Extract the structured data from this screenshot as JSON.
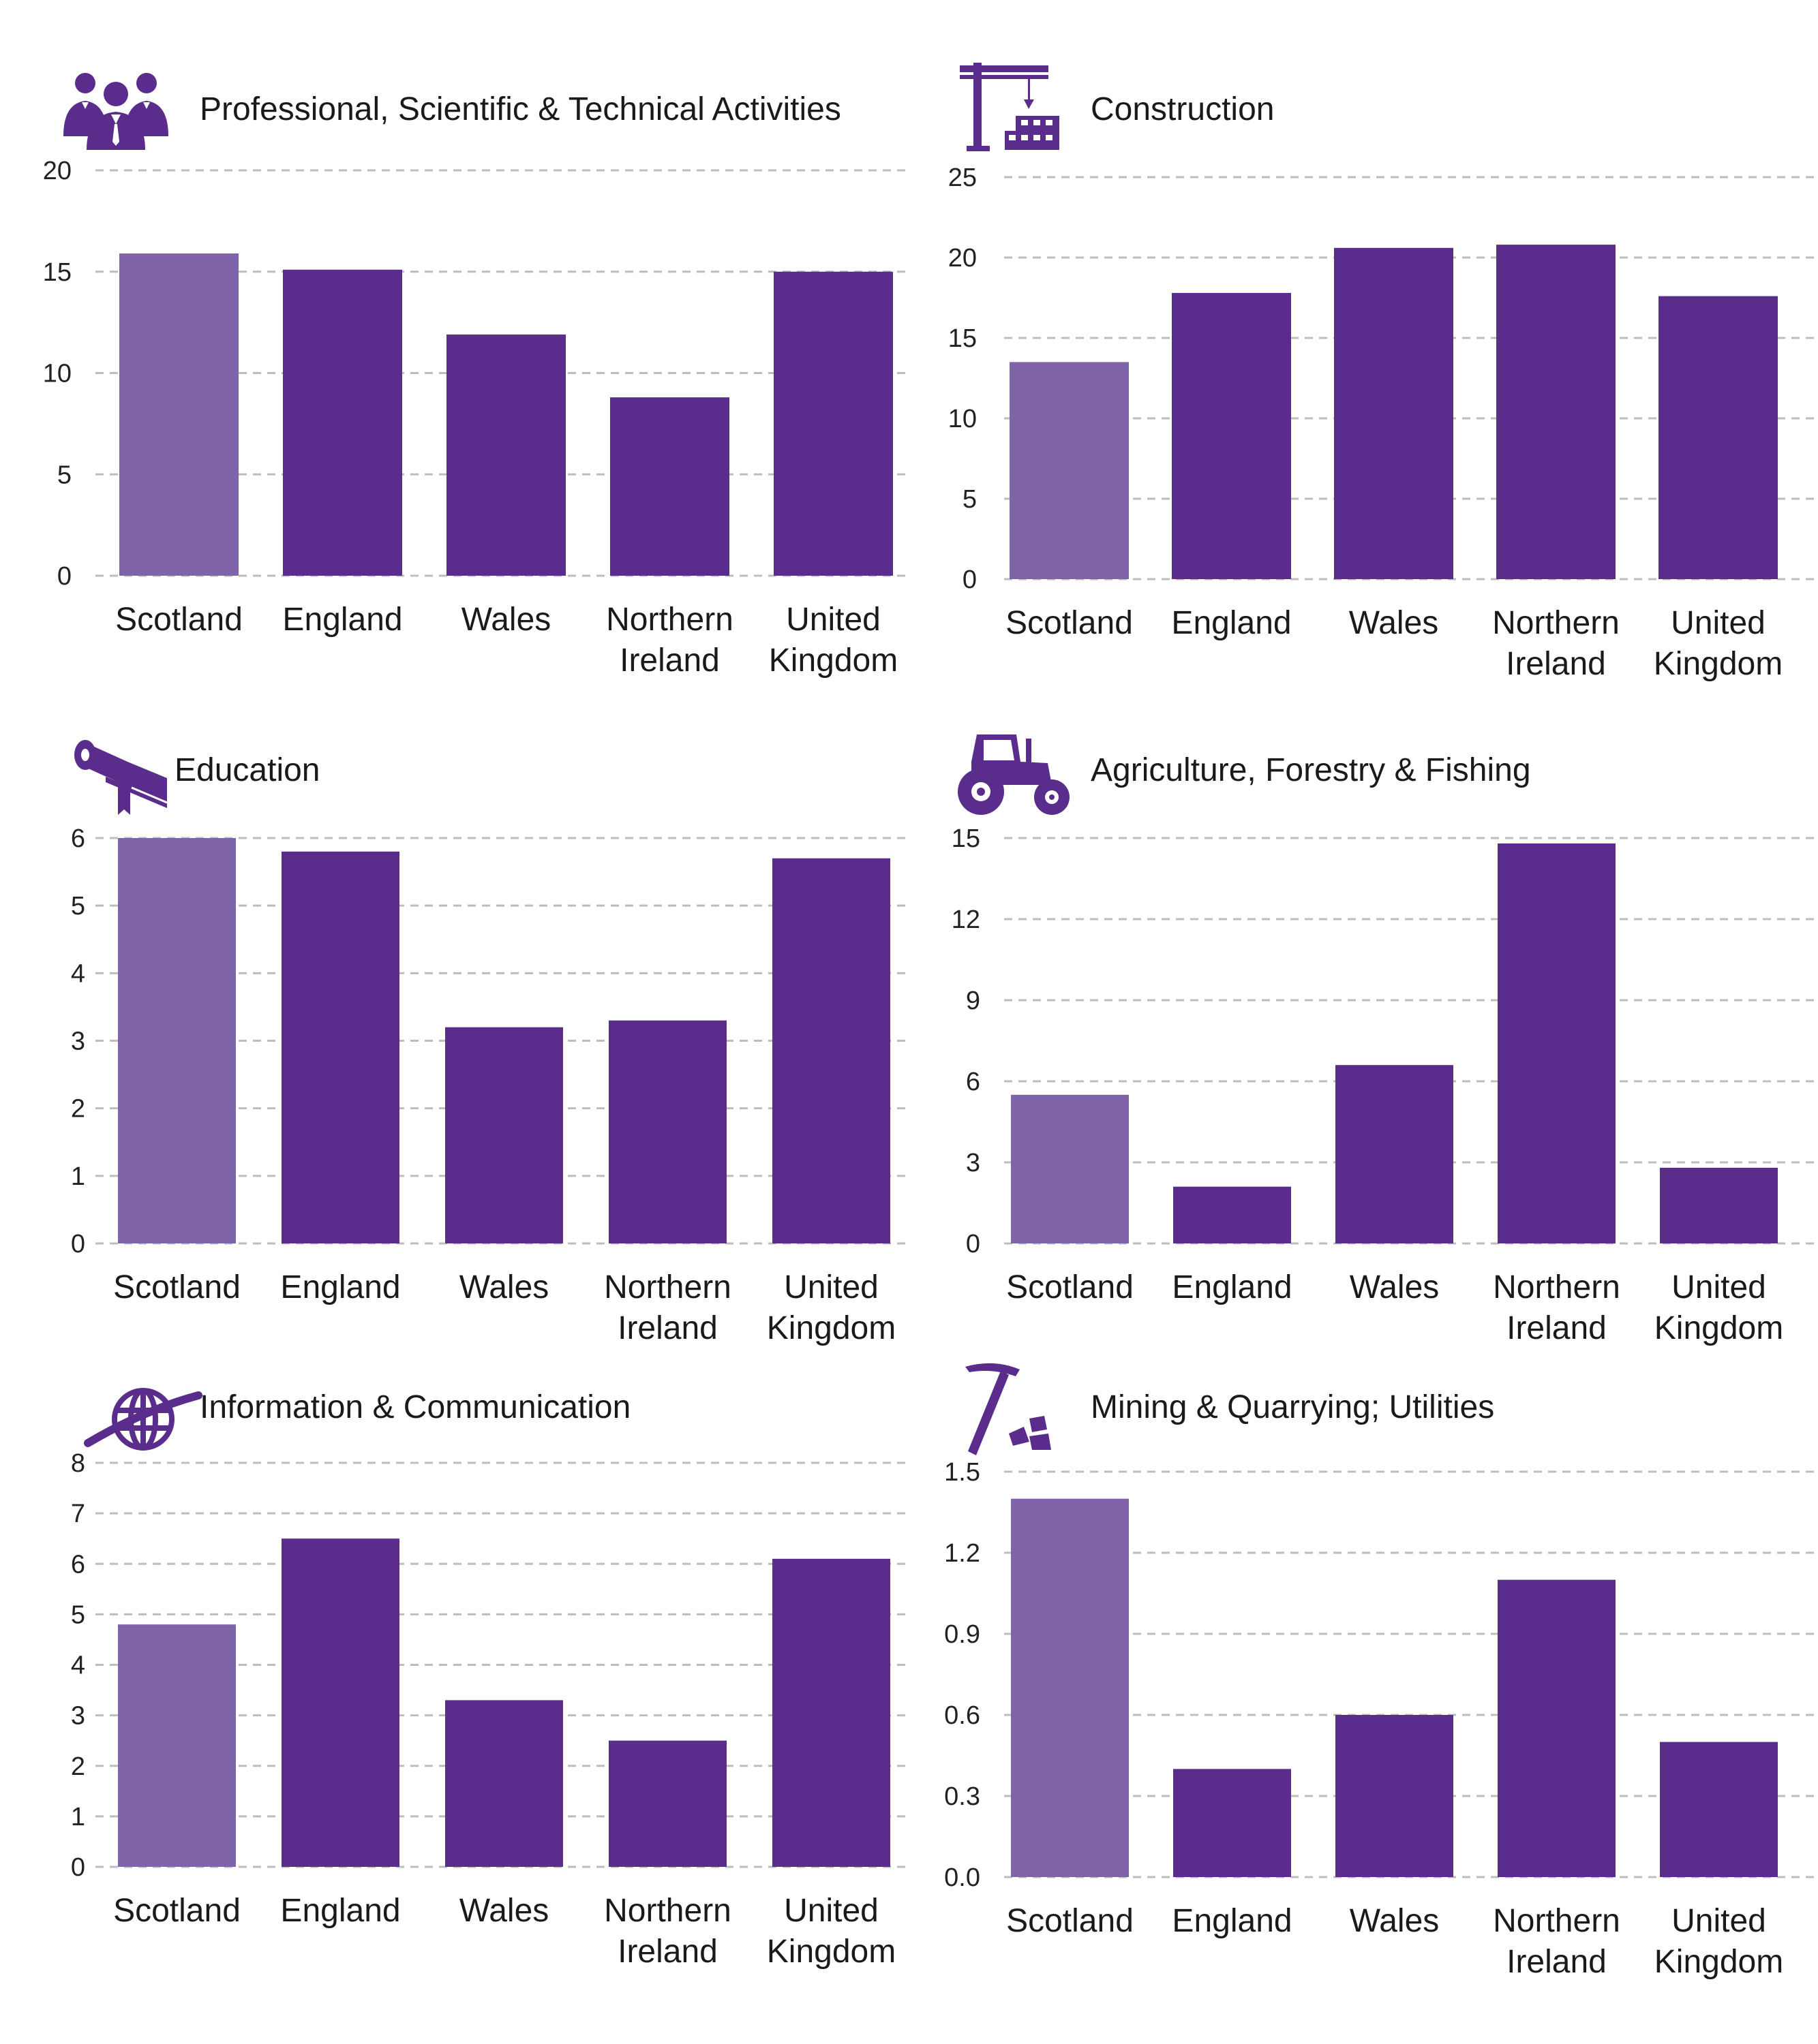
{
  "colors": {
    "highlight": "#8064a9",
    "bar": "#5a2d8c",
    "icon": "#5a2d8c",
    "grid": "#bdbdbd"
  },
  "chart_data": [
    {
      "type": "bar",
      "title": "Professional, Scientific & Technical Activities",
      "icon": "professionals-group-icon",
      "categories": [
        [
          "Scotland"
        ],
        [
          "England"
        ],
        [
          "Wales"
        ],
        [
          "Northern",
          "Ireland"
        ],
        [
          "United",
          "Kingdom"
        ]
      ],
      "values": [
        15.9,
        15.1,
        11.9,
        8.8,
        15.0
      ],
      "ylim": [
        0,
        20
      ],
      "yticks": [
        "0",
        "5",
        "10",
        "15",
        "20"
      ],
      "highlight_index": 0,
      "grid": true
    },
    {
      "type": "bar",
      "title": "Construction",
      "icon": "construction-crane-icon",
      "categories": [
        [
          "Scotland"
        ],
        [
          "England"
        ],
        [
          "Wales"
        ],
        [
          "Northern",
          "Ireland"
        ],
        [
          "United",
          "Kingdom"
        ]
      ],
      "values": [
        13.5,
        17.8,
        20.6,
        20.8,
        17.6
      ],
      "ylim": [
        0,
        25
      ],
      "yticks": [
        "0",
        "5",
        "10",
        "15",
        "20",
        "25"
      ],
      "highlight_index": 0,
      "grid": true
    },
    {
      "type": "bar",
      "title": "Education",
      "icon": "book-scroll-icon",
      "categories": [
        [
          "Scotland"
        ],
        [
          "England"
        ],
        [
          "Wales"
        ],
        [
          "Northern",
          "Ireland"
        ],
        [
          "United",
          "Kingdom"
        ]
      ],
      "values": [
        6.0,
        5.8,
        3.2,
        3.3,
        5.7
      ],
      "ylim": [
        0,
        6
      ],
      "yticks": [
        "0",
        "1",
        "2",
        "3",
        "4",
        "5",
        "6"
      ],
      "highlight_index": 0,
      "grid": true
    },
    {
      "type": "bar",
      "title": "Agriculture, Forestry & Fishing",
      "icon": "tractor-icon",
      "categories": [
        [
          "Scotland"
        ],
        [
          "England"
        ],
        [
          "Wales"
        ],
        [
          "Northern",
          "Ireland"
        ],
        [
          "United",
          "Kingdom"
        ]
      ],
      "values": [
        5.5,
        2.1,
        6.6,
        14.8,
        2.8
      ],
      "ylim": [
        0,
        15
      ],
      "yticks": [
        "0",
        "3",
        "6",
        "9",
        "12",
        "15"
      ],
      "highlight_index": 0,
      "grid": true
    },
    {
      "type": "bar",
      "title": "Information & Communication",
      "icon": "globe-icon",
      "categories": [
        [
          "Scotland"
        ],
        [
          "England"
        ],
        [
          "Wales"
        ],
        [
          "Northern",
          "Ireland"
        ],
        [
          "United",
          "Kingdom"
        ]
      ],
      "values": [
        4.8,
        6.5,
        3.3,
        2.5,
        6.1
      ],
      "ylim": [
        0,
        8
      ],
      "yticks": [
        "0",
        "1",
        "2",
        "3",
        "4",
        "5",
        "6",
        "7",
        "8"
      ],
      "highlight_index": 0,
      "grid": true
    },
    {
      "type": "bar",
      "title": "Mining & Quarrying; Utilities",
      "icon": "pickaxe-icon",
      "categories": [
        [
          "Scotland"
        ],
        [
          "England"
        ],
        [
          "Wales"
        ],
        [
          "Northern",
          "Ireland"
        ],
        [
          "United",
          "Kingdom"
        ]
      ],
      "values": [
        1.4,
        0.4,
        0.6,
        1.1,
        0.5
      ],
      "ylim": [
        0,
        1.5
      ],
      "yticks": [
        "0.0",
        "0.3",
        "0.6",
        "0.9",
        "1.2",
        "1.5"
      ],
      "highlight_index": 0,
      "grid": true
    }
  ]
}
